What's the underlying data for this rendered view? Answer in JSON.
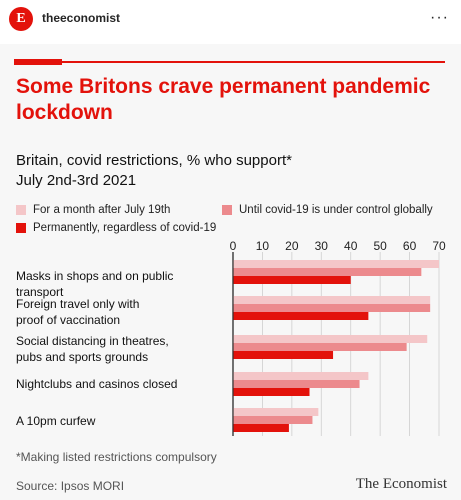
{
  "post": {
    "account": "theeconomist",
    "avatar_letter": "E",
    "more_glyph": "···"
  },
  "colors": {
    "brand_red": "#e3120b",
    "series_light": "#f4c6c8",
    "series_mid": "#ec8a8d",
    "series_dark": "#e3120b"
  },
  "chart_data": {
    "type": "bar",
    "orientation": "horizontal",
    "title": "Some Britons crave permanent pandemic lockdown",
    "subtitle": "Britain, covid restrictions, % who support*",
    "subtitle2": "July 2nd-3rd 2021",
    "categories": [
      "Masks in shops and on public transport",
      "Foreign travel only with proof of vaccination",
      "Social distancing in theatres, pubs and sports grounds",
      "Nightclubs and casinos closed",
      "A 10pm curfew"
    ],
    "category_lines": [
      [
        "Masks in shops and on public transport"
      ],
      [
        "Foreign travel only with",
        "proof of vaccination"
      ],
      [
        "Social distancing in theatres,",
        "pubs and sports grounds"
      ],
      [
        "Nightclubs and casinos closed"
      ],
      [
        "A 10pm curfew"
      ]
    ],
    "series": [
      {
        "name": "For a month after July 19th",
        "values": [
          70,
          67,
          66,
          46,
          29
        ]
      },
      {
        "name": "Until covid-19 is under control globally",
        "values": [
          64,
          67,
          59,
          43,
          27
        ]
      },
      {
        "name": "Permanently, regardless of covid-19",
        "values": [
          40,
          46,
          34,
          26,
          19
        ]
      }
    ],
    "x_ticks": [
      0,
      10,
      20,
      30,
      40,
      50,
      60,
      70
    ],
    "xlim": [
      0,
      70
    ],
    "grid": true,
    "legend_position": "top"
  },
  "footnote": "*Making listed restrictions compulsory",
  "source": "Source: Ipsos MORI",
  "publisher": "The Economist"
}
